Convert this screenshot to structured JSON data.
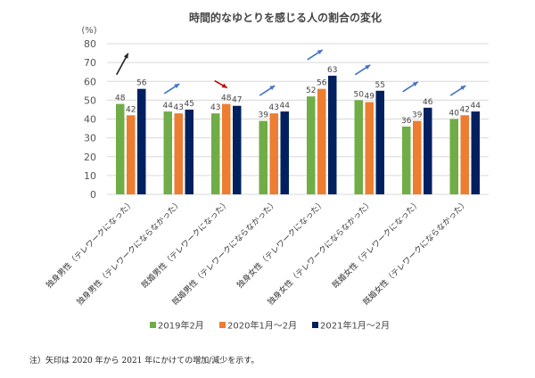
{
  "chart_data": {
    "type": "bar",
    "title": "時間的なゆとりを感じる人の割合の変化",
    "ylabel": "(%)",
    "ylim": [
      0,
      80
    ],
    "yticks": [
      0,
      10,
      20,
      30,
      40,
      50,
      60,
      70,
      80
    ],
    "grid": true,
    "legend_position": "bottom",
    "categories": [
      "独身男性（テレワークになった）",
      "独身男性（テレワークにならなかった）",
      "既婚男性（テレワークになった）",
      "既婚男性（テレワークにならなかった）",
      "独身女性（テレワークになった）",
      "独身女性（テレワークにならなかった）",
      "既婚女性（テレワークになった）",
      "既婚女性（テレワークにならなかった）"
    ],
    "series": [
      {
        "name": "2019年2月",
        "color": "#70AD47",
        "values": [
          48,
          44,
          43,
          39,
          52,
          50,
          36,
          40
        ]
      },
      {
        "name": "2020年1月～2月",
        "color": "#ED7D31",
        "values": [
          42,
          43,
          48,
          43,
          56,
          49,
          39,
          42
        ]
      },
      {
        "name": "2021年1月～2月",
        "color": "#002060",
        "values": [
          56,
          45,
          47,
          44,
          63,
          55,
          46,
          44
        ]
      }
    ],
    "arrows": [
      {
        "direction": "up",
        "color": "#222222"
      },
      {
        "direction": "up",
        "color": "#4472C4"
      },
      {
        "direction": "down",
        "color": "#C00000"
      },
      {
        "direction": "up",
        "color": "#4472C4"
      },
      {
        "direction": "up",
        "color": "#4472C4"
      },
      {
        "direction": "up",
        "color": "#4472C4"
      },
      {
        "direction": "up",
        "color": "#4472C4"
      },
      {
        "direction": "up",
        "color": "#4472C4"
      }
    ]
  },
  "note": "注）矢印は 2020 年から 2021 年にかけての増加/減少を示す。"
}
